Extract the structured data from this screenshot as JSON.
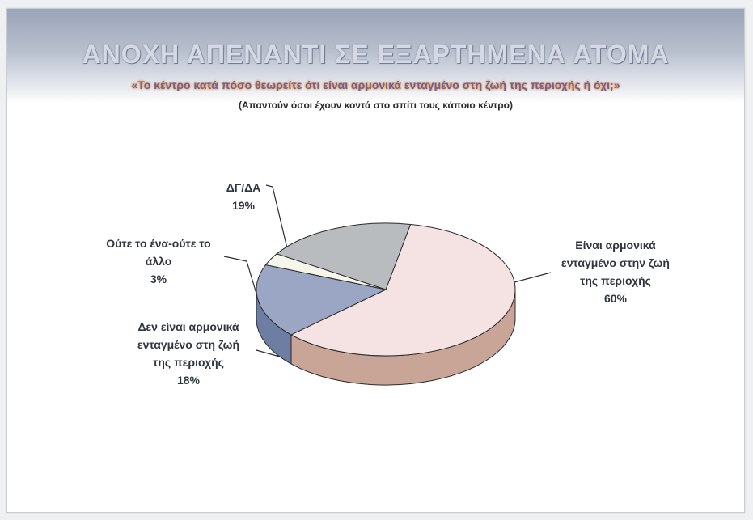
{
  "chart_data": {
    "type": "pie",
    "title": "ΑΝΟΧΗ ΑΠΕΝΑΝΤΙ ΣΕ ΕΞΑΡΤΗΜΕΝΑ ΑΤΟΜΑ",
    "subtitle": "«Το κέντρο κατά πόσο θεωρείτε ότι είναι αρμονικά ενταγμένο στη ζωή της περιοχής ή όχι;»",
    "note": "(Απαντούν όσοι έχουν κοντά στο σπίτι τους κάποιο κέντρο)",
    "slices": [
      {
        "label": "Είναι αρμονικά ενταγμένο στην ζωή της περιοχής",
        "value": 60,
        "display": "60%",
        "color": "#f5e3e3",
        "side_color": "#c9a597"
      },
      {
        "label": "Δεν είναι αρμονικά ενταγμένο στη ζωή της περιοχής",
        "value": 18,
        "display": "18%",
        "color": "#9aa6c3",
        "side_color": "#6e7ea3"
      },
      {
        "label": "Ούτε το ένα-ούτε το άλλο",
        "value": 3,
        "display": "3%",
        "color": "#f7f6ea",
        "side_color": "#c9c7b5"
      },
      {
        "label": "ΔΓ/ΔΑ",
        "value": 19,
        "display": "19%",
        "color": "#b9bcbe",
        "side_color": "#8d9194"
      }
    ]
  },
  "labels": [
    {
      "lines": [
        "Είναι αρμονικά",
        "ενταγμένο στην ζωή",
        "της περιοχής",
        "60%"
      ]
    },
    {
      "lines": [
        "Δεν είναι αρμονικά",
        "ενταγμένο στη ζωή",
        "της περιοχής",
        "18%"
      ]
    },
    {
      "lines": [
        "Ούτε το ένα-ούτε το",
        "άλλο",
        "3%"
      ]
    },
    {
      "lines": [
        "ΔΓ/ΔΑ",
        "19%"
      ]
    }
  ]
}
